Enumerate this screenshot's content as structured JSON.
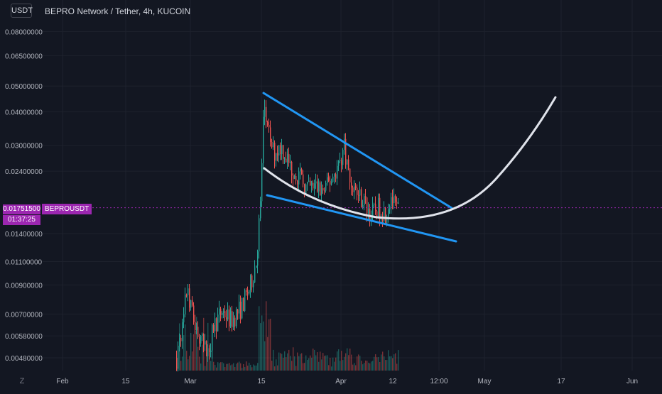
{
  "header": {
    "currency": "USDT",
    "title": "BEPRO Network / Tether, 4h, KUCOIN"
  },
  "price_axis": {
    "labels": [
      "0.08000000",
      "0.06500000",
      "0.05000000",
      "0.04000000",
      "0.03000000",
      "0.02400000",
      "0.01400000",
      "0.01100000",
      "0.00900000",
      "0.00700000",
      "0.00580000",
      "0.00480000"
    ],
    "current_price": "0.01751500",
    "countdown": "01:37:25",
    "symbol": "BEPROUSDT"
  },
  "time_axis": {
    "labels": [
      "Feb",
      "15",
      "Mar",
      "15",
      "Apr",
      "12",
      "12:00",
      "May",
      "17",
      "Jun"
    ],
    "timezone_button": "Z"
  },
  "colors": {
    "background": "#131722",
    "up": "#26a69a",
    "down": "#ef5350",
    "price_line": "#9c27b0",
    "trendline": "#2196f3",
    "arc": "#e0e3eb",
    "axis_text": "#b2b5be"
  },
  "chart_data": {
    "type": "candlestick",
    "title": "BEPRO Network / Tether, 4h, KUCOIN",
    "y_scale": "log",
    "ylim": [
      0.0043,
      0.105
    ],
    "current_price": 0.017515,
    "x_ticks": [
      "Feb",
      "15",
      "Mar",
      "15",
      "Apr",
      "12",
      "12:00",
      "May",
      "17",
      "Jun"
    ],
    "y_ticks": [
      0.08,
      0.065,
      0.05,
      0.04,
      0.03,
      0.024,
      0.014,
      0.011,
      0.009,
      0.007,
      0.0058,
      0.0048
    ],
    "drawings": [
      {
        "type": "trendline",
        "description": "descending resistance",
        "from": [
          0.047,
          "Mar 15"
        ],
        "to": [
          0.0175,
          "Apr 24"
        ]
      },
      {
        "type": "trendline",
        "description": "descending support",
        "from": [
          0.019,
          "Mar 15"
        ],
        "to": [
          0.0135,
          "Apr 27"
        ]
      },
      {
        "type": "arc",
        "description": "rounding bottom projection to 0.045"
      }
    ]
  }
}
